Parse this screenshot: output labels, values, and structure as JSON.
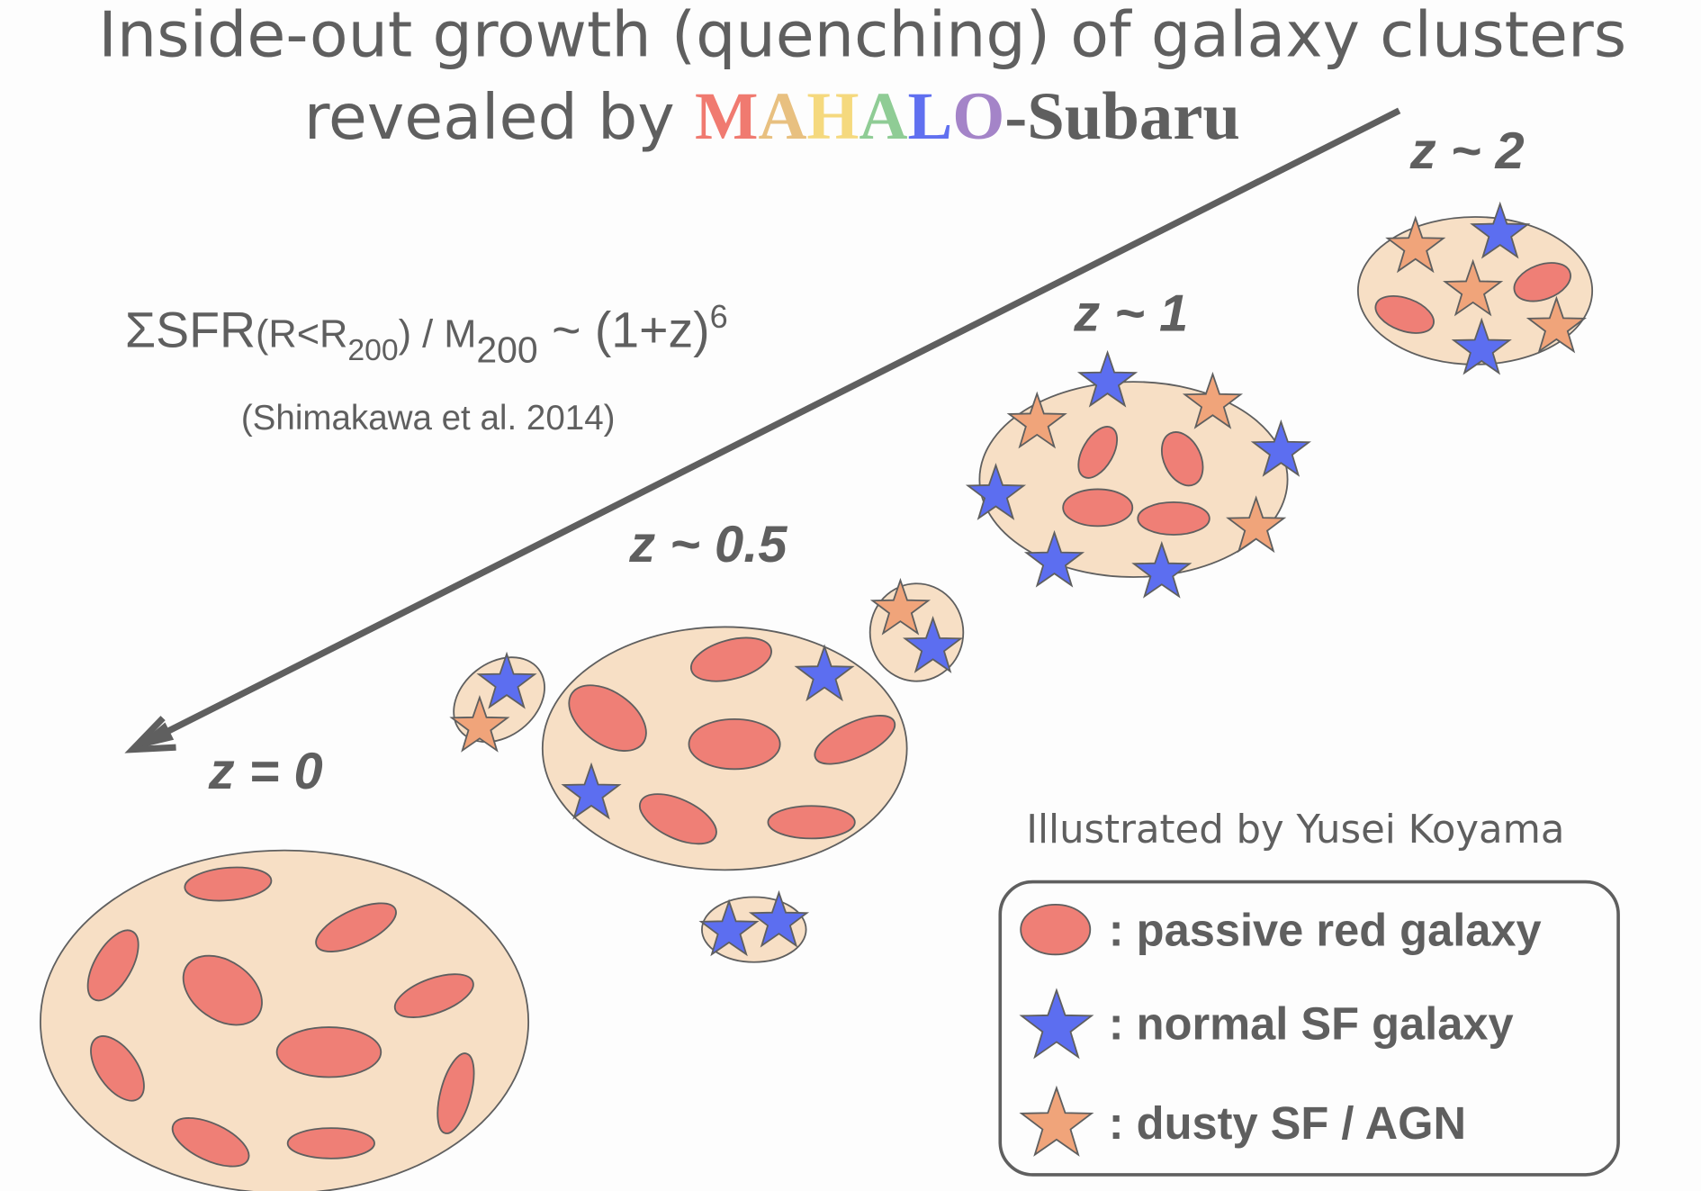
{
  "title": {
    "line1": "Inside-out growth (quenching) of galaxy clusters",
    "line2_prefix": "revealed by ",
    "mahalo_letters": [
      "M",
      "A",
      "H",
      "A",
      "L",
      "O"
    ],
    "mahalo_colors": [
      "#f07a70",
      "#e8c080",
      "#f5d97e",
      "#8fcc95",
      "#6070f0",
      "#a484c8"
    ],
    "suffix": "-Subaru"
  },
  "formula": {
    "main": "ΣSFR",
    "paren_open": "(R<R",
    "sub1": "200",
    "paren_close": ") / M",
    "sub2": "200",
    "tail": " ~ (1+z)",
    "sup": "6",
    "reference": "(Shimakawa et al. 2014)"
  },
  "redshift_labels": [
    "z ~ 2",
    "z ~ 1",
    "z ~ 0.5",
    "z = 0"
  ],
  "credit": "Illustrated by Yusei Koyama",
  "legend": {
    "items": [
      {
        "symbol": "ellipse",
        "label": ": passive red galaxy"
      },
      {
        "symbol": "star",
        "label": ": normal SF galaxy"
      },
      {
        "symbol": "star",
        "label": ": dusty SF / AGN"
      }
    ]
  },
  "colors": {
    "text": "#5f5f5f",
    "cluster_fill": "#f7dfc5",
    "passive_red": "#ef7f76",
    "normal_sf_blue": "#5c6ef0",
    "dusty_orange": "#f0a47a",
    "background": "#fdfdfd"
  }
}
